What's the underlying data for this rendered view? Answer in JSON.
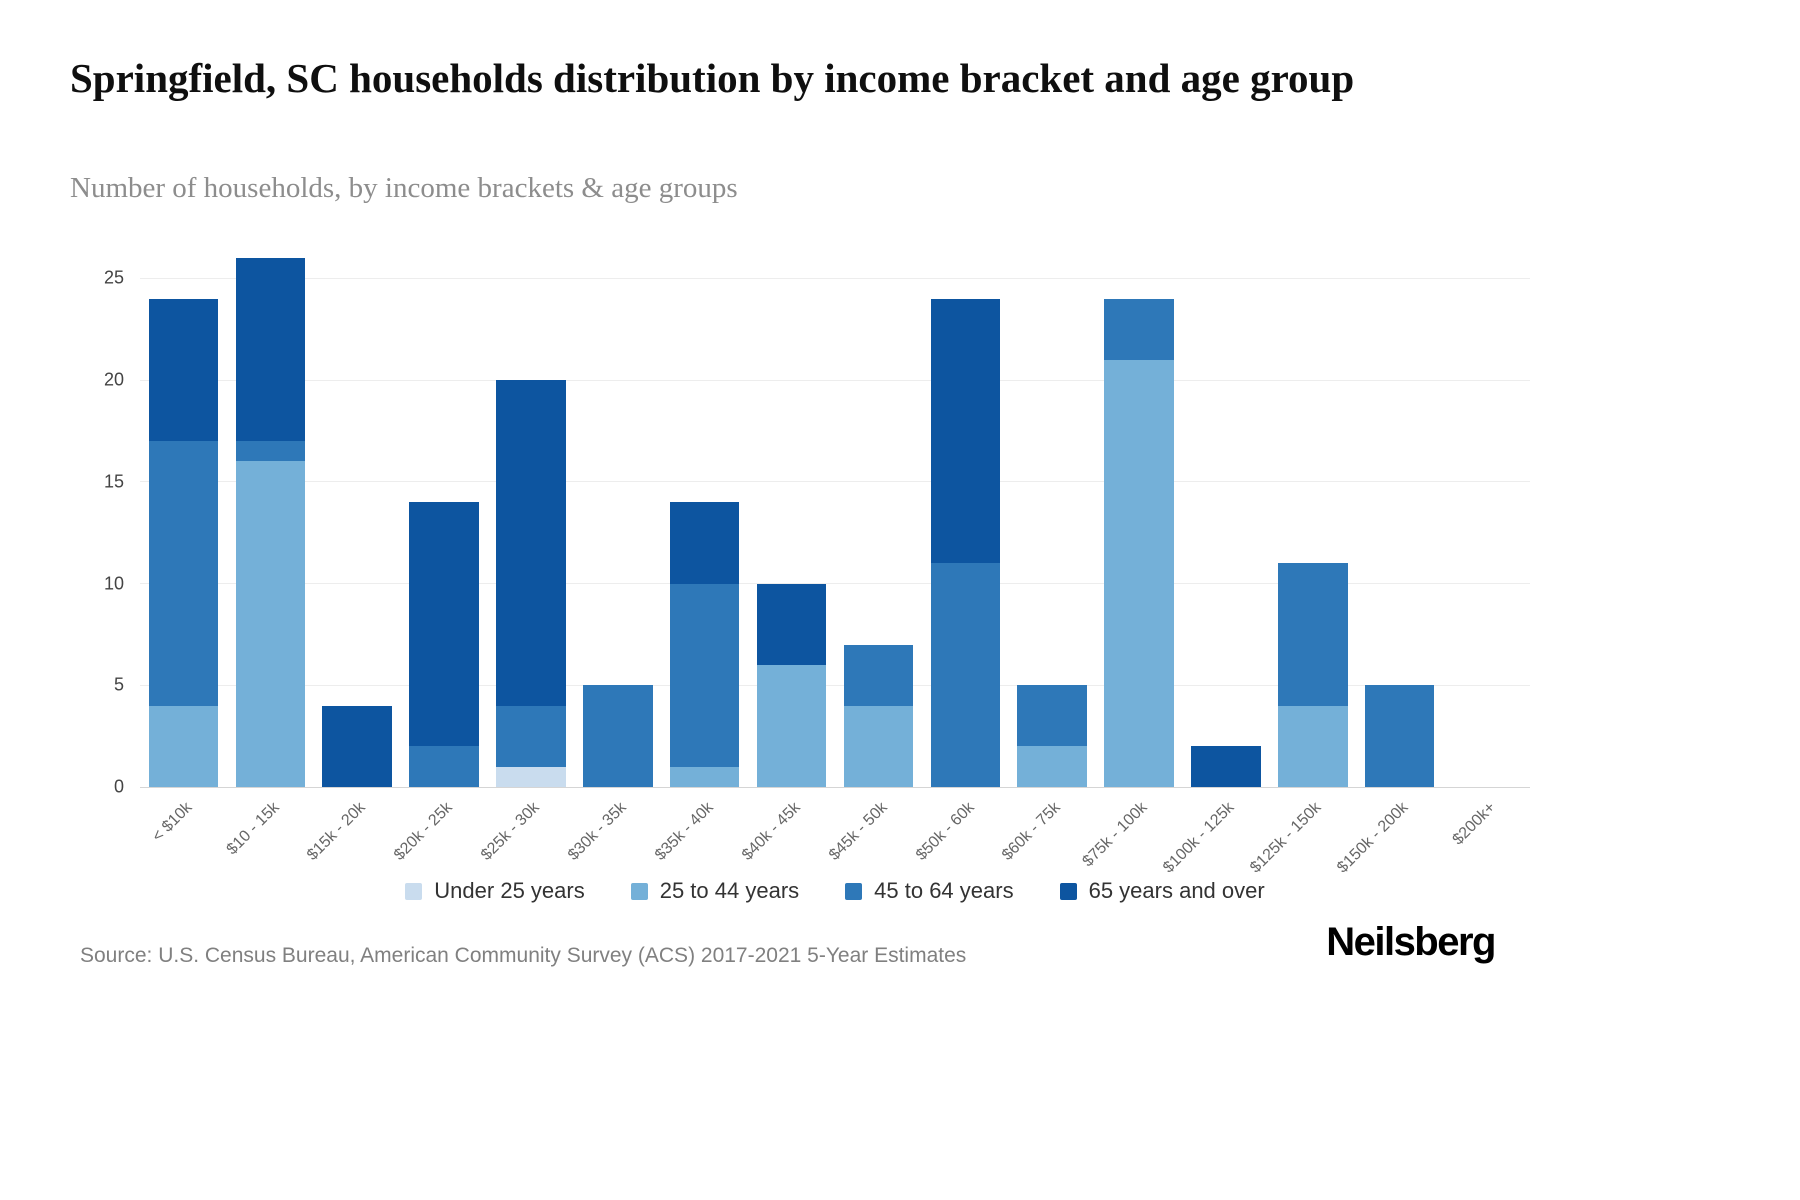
{
  "page": {
    "source": "Source: U.S. Census Bureau, American Community Survey (ACS) 2017-2021 5-Year Estimates",
    "logo": "Neilsberg"
  },
  "chart_data": {
    "type": "bar",
    "stacked": true,
    "title": "Springfield, SC households distribution by income bracket and age group",
    "subtitle": "Number of households, by income brackets & age groups",
    "xlabel": "",
    "ylabel": "",
    "ylim": [
      0,
      26
    ],
    "yticks": [
      0,
      5,
      10,
      15,
      20,
      25
    ],
    "grid": true,
    "legend_position": "bottom",
    "categories": [
      "< $10k",
      "$10 - 15k",
      "$15k - 20k",
      "$20k - 25k",
      "$25k - 30k",
      "$30k - 35k",
      "$35k - 40k",
      "$40k - 45k",
      "$45k - 50k",
      "$50k - 60k",
      "$60k - 75k",
      "$75k - 100k",
      "$100k - 125k",
      "$125k - 150k",
      "$150k - 200k",
      "$200k+"
    ],
    "series": [
      {
        "name": "Under 25 years",
        "color": "#c9dcee",
        "values": [
          0,
          0,
          0,
          0,
          1,
          0,
          0,
          0,
          0,
          0,
          0,
          0,
          0,
          0,
          0,
          0
        ]
      },
      {
        "name": "25 to 44 years",
        "color": "#74b0d8",
        "values": [
          4,
          16,
          0,
          0,
          0,
          0,
          1,
          6,
          4,
          0,
          2,
          21,
          0,
          4,
          0,
          0
        ]
      },
      {
        "name": "45 to 64 years",
        "color": "#2e78b8",
        "values": [
          13,
          1,
          0,
          2,
          3,
          5,
          9,
          0,
          3,
          11,
          3,
          3,
          0,
          7,
          5,
          0
        ]
      },
      {
        "name": "65 years and over",
        "color": "#0d55a0",
        "values": [
          7,
          9,
          4,
          12,
          16,
          0,
          4,
          4,
          0,
          13,
          0,
          0,
          2,
          0,
          0,
          0
        ]
      }
    ],
    "totals": [
      24,
      26,
      4,
      14,
      20,
      5,
      14,
      10,
      7,
      24,
      5,
      24,
      2,
      11,
      5,
      0
    ]
  }
}
